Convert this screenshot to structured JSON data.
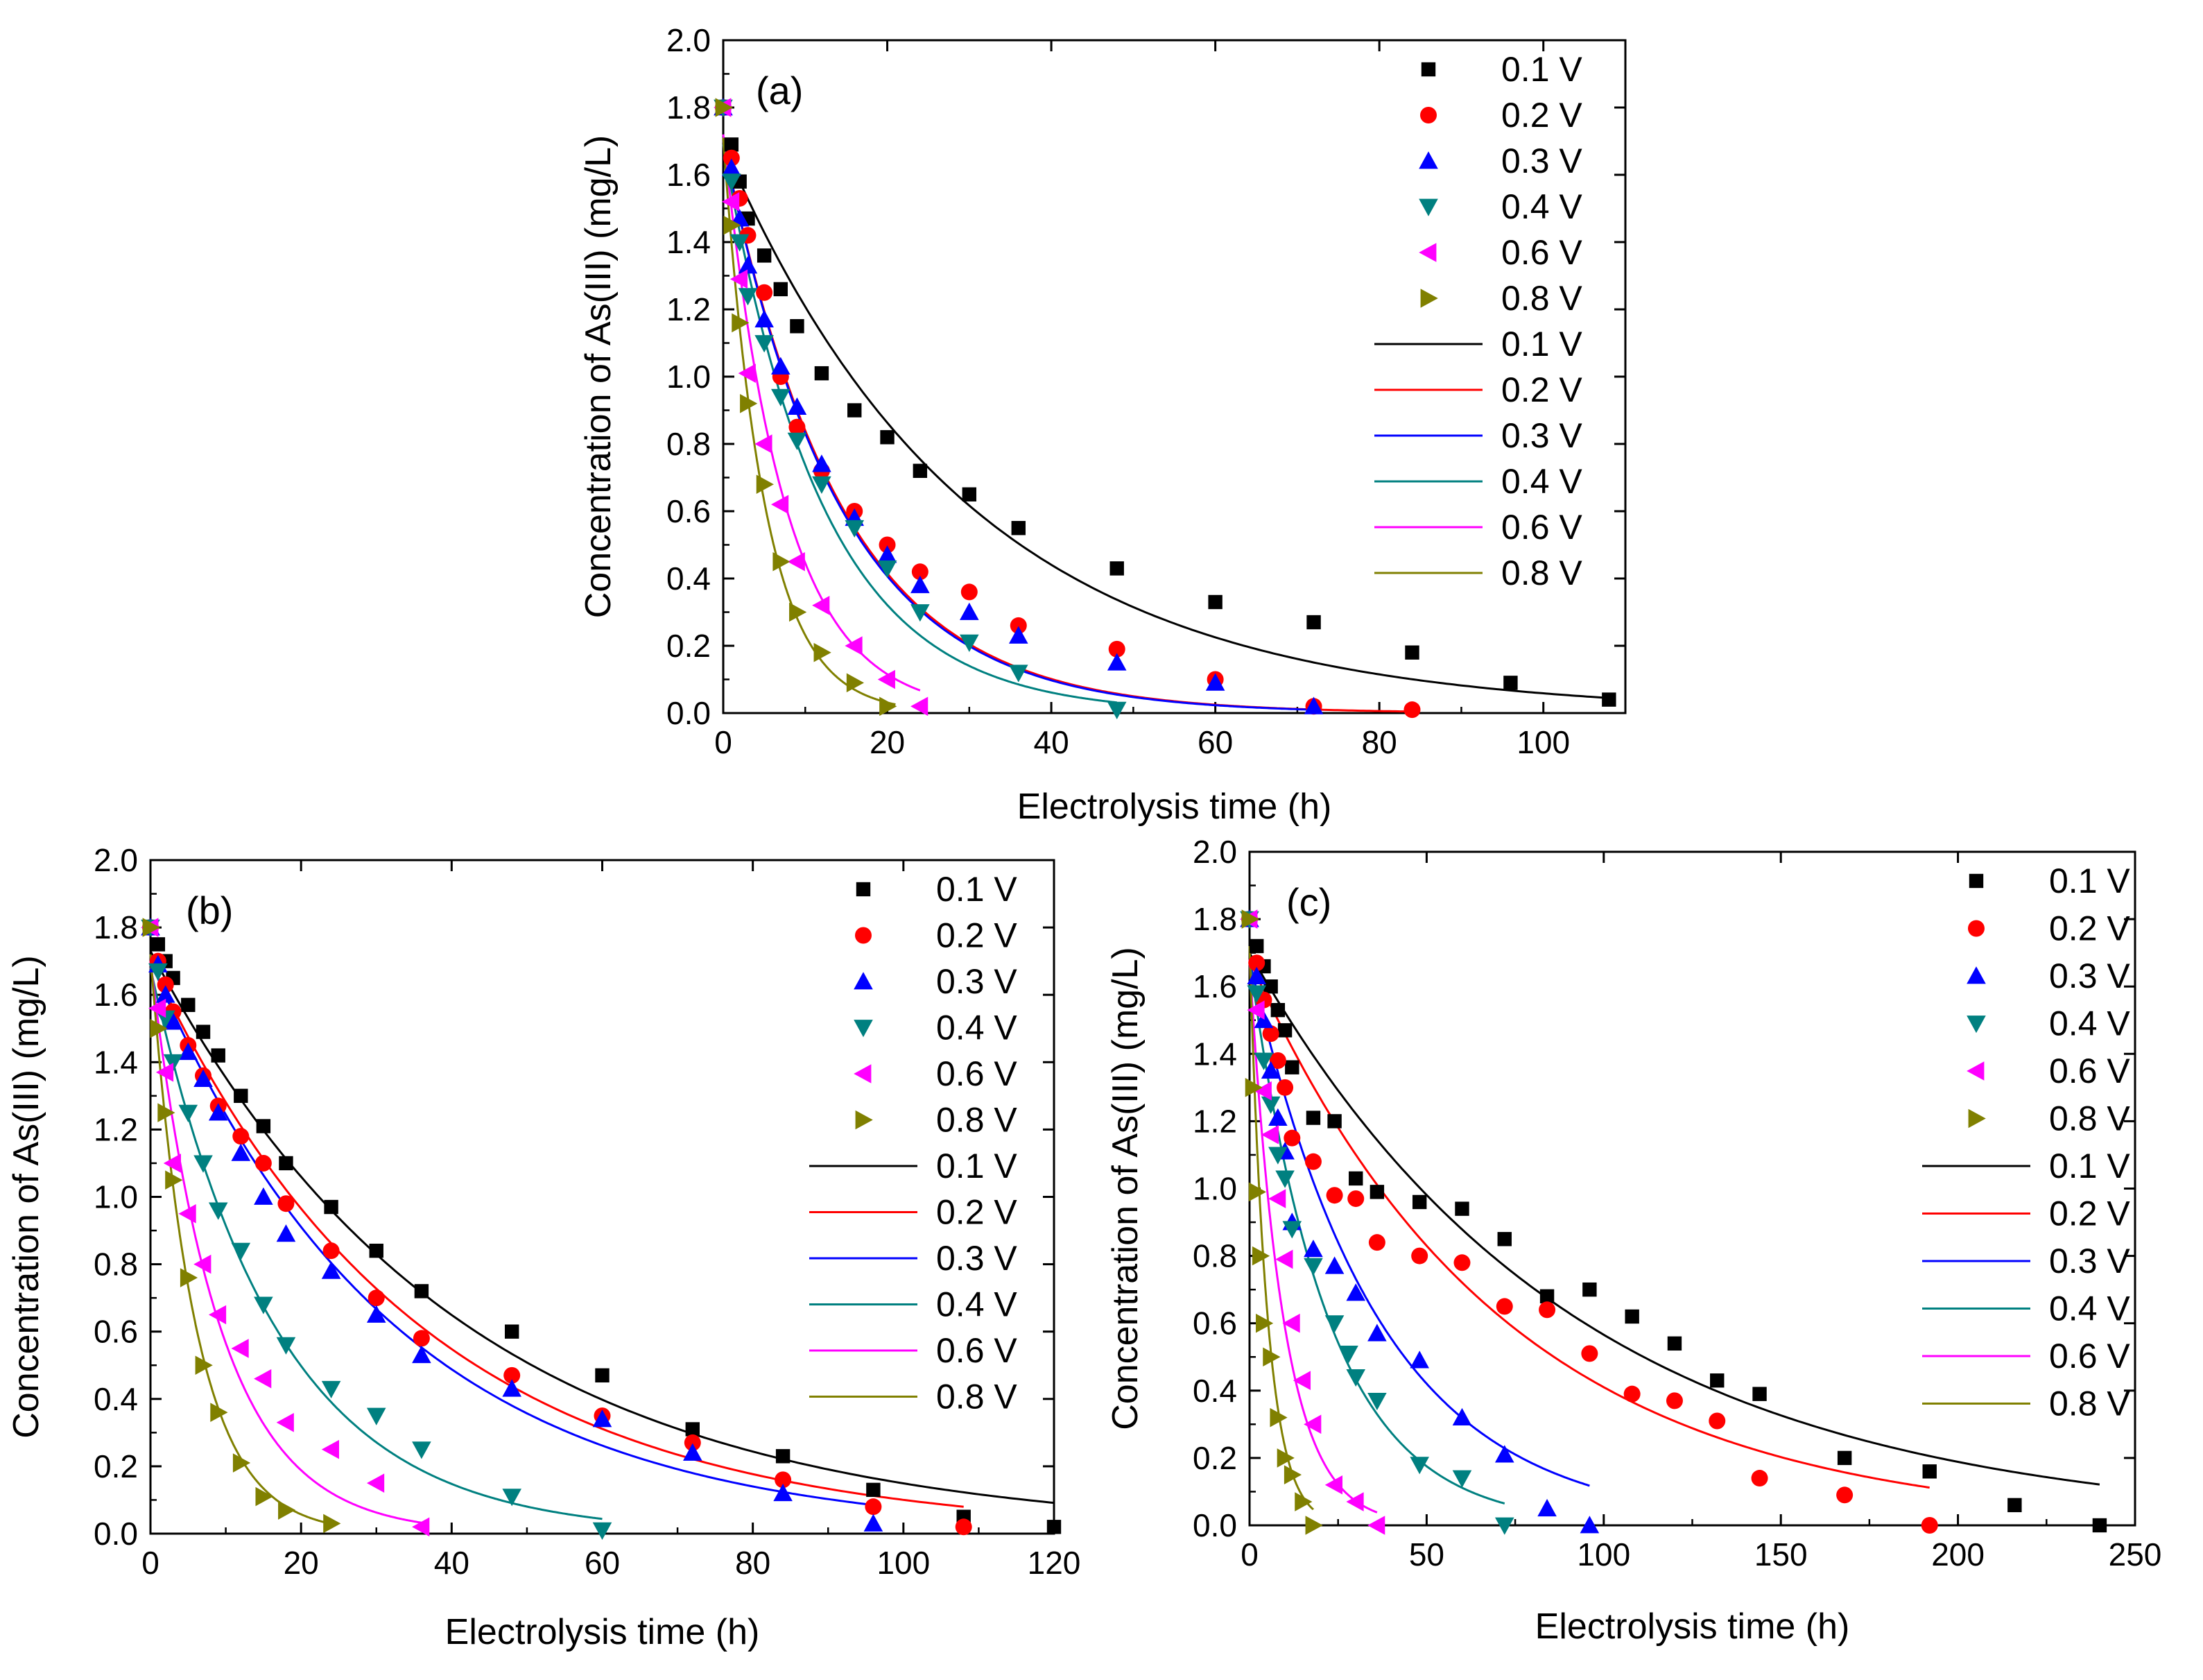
{
  "figure": {
    "colors": {
      "0.1 V": "#000000",
      "0.2 V": "#ff0000",
      "0.3 V": "#0000ff",
      "0.4 V": "#008080",
      "0.6 V": "#ff00ff",
      "0.8 V": "#808000"
    },
    "markers": {
      "0.1 V": "square",
      "0.2 V": "circle",
      "0.3 V": "triangle-up",
      "0.4 V": "triangle-down",
      "0.6 V": "triangle-left",
      "0.8 V": "triangle-right"
    }
  },
  "chart_data": [
    {
      "type": "scatter",
      "panel_label": "(a)",
      "xlabel": "Electrolysis time (h)",
      "ylabel": "Concentration of As(III) (mg/L)",
      "xlim": [
        0,
        110
      ],
      "ylim": [
        0,
        2.0
      ],
      "xticks": [
        0,
        20,
        40,
        60,
        80,
        100
      ],
      "xtick_labels": [
        "0",
        "20",
        "40",
        "60",
        "80",
        "100"
      ],
      "yticks": [
        0,
        0.2,
        0.4,
        0.6,
        0.8,
        1.0,
        1.2,
        1.4,
        1.6,
        1.8,
        2.0
      ],
      "ytick_labels": [
        "0.0",
        "0.2",
        "0.4",
        "0.6",
        "0.8",
        "1.0",
        "1.2",
        "1.4",
        "1.6",
        "1.8",
        "2.0"
      ],
      "legend_position": "top-right",
      "series": [
        {
          "name": "0.1 V",
          "x": [
            0,
            1,
            2,
            3,
            5,
            7,
            9,
            12,
            16,
            20,
            24,
            30,
            36,
            48,
            60,
            72,
            84,
            96,
            108
          ],
          "values": [
            1.8,
            1.69,
            1.58,
            1.47,
            1.36,
            1.26,
            1.15,
            1.01,
            0.9,
            0.82,
            0.72,
            0.65,
            0.55,
            0.43,
            0.33,
            0.27,
            0.18,
            0.09,
            0.04
          ],
          "fit": {
            "c0": 1.69,
            "k": 0.0336,
            "tmax": 108
          }
        },
        {
          "name": "0.2 V",
          "x": [
            0,
            1,
            2,
            3,
            5,
            7,
            9,
            12,
            16,
            20,
            24,
            30,
            36,
            48,
            60,
            72,
            84
          ],
          "values": [
            1.8,
            1.65,
            1.53,
            1.42,
            1.25,
            1.0,
            0.85,
            0.72,
            0.6,
            0.5,
            0.42,
            0.36,
            0.26,
            0.19,
            0.1,
            0.02,
            0.01
          ],
          "fit": {
            "c0": 1.7,
            "k": 0.0705,
            "tmax": 84
          }
        },
        {
          "name": "0.3 V",
          "x": [
            0,
            1,
            2,
            3,
            5,
            7,
            9,
            12,
            16,
            20,
            24,
            30,
            36,
            48,
            60,
            72
          ],
          "values": [
            1.8,
            1.62,
            1.47,
            1.33,
            1.17,
            1.03,
            0.91,
            0.74,
            0.58,
            0.47,
            0.38,
            0.3,
            0.23,
            0.15,
            0.09,
            0.02
          ],
          "fit": {
            "c0": 1.7,
            "k": 0.0715,
            "tmax": 72
          }
        },
        {
          "name": "0.4 V",
          "x": [
            0,
            1,
            2,
            3,
            5,
            7,
            9,
            12,
            16,
            20,
            24,
            30,
            36,
            48
          ],
          "values": [
            1.8,
            1.58,
            1.4,
            1.24,
            1.1,
            0.94,
            0.81,
            0.68,
            0.55,
            0.43,
            0.3,
            0.21,
            0.12,
            0.01
          ],
          "fit": {
            "c0": 1.69,
            "k": 0.083,
            "tmax": 48
          }
        },
        {
          "name": "0.6 V",
          "x": [
            0,
            1,
            2,
            3,
            5,
            7,
            9,
            12,
            16,
            20,
            24
          ],
          "values": [
            1.8,
            1.52,
            1.29,
            1.01,
            0.8,
            0.62,
            0.45,
            0.32,
            0.2,
            0.1,
            0.02
          ],
          "fit": {
            "c0": 1.72,
            "k": 0.135,
            "tmax": 24
          }
        },
        {
          "name": "0.8 V",
          "x": [
            0,
            1,
            2,
            3,
            5,
            7,
            9,
            12,
            16,
            20
          ],
          "values": [
            1.8,
            1.45,
            1.16,
            0.92,
            0.68,
            0.45,
            0.3,
            0.18,
            0.09,
            0.02
          ],
          "fit": {
            "c0": 1.71,
            "k": 0.2,
            "tmax": 21
          }
        }
      ]
    },
    {
      "type": "scatter",
      "panel_label": "(b)",
      "xlabel": "Electrolysis time  (h)",
      "ylabel": "Concentration of As(III) (mg/L)",
      "xlim": [
        0,
        120
      ],
      "ylim": [
        0,
        2.0
      ],
      "xticks": [
        0,
        20,
        40,
        60,
        80,
        100,
        120
      ],
      "xtick_labels": [
        "0",
        "20",
        "40",
        "60",
        "80",
        "100",
        "120"
      ],
      "yticks": [
        0,
        0.2,
        0.4,
        0.6,
        0.8,
        1.0,
        1.2,
        1.4,
        1.6,
        1.8,
        2.0
      ],
      "ytick_labels": [
        "0.0",
        "0.2",
        "0.4",
        "0.6",
        "0.8",
        "1.0",
        "1.2",
        "1.4",
        "1.6",
        "1.8",
        "2.0"
      ],
      "legend_position": "top-right",
      "series": [
        {
          "name": "0.1 V",
          "x": [
            0,
            1,
            2,
            3,
            5,
            7,
            9,
            12,
            15,
            18,
            24,
            30,
            36,
            48,
            60,
            72,
            84,
            96,
            108,
            120
          ],
          "values": [
            1.8,
            1.75,
            1.7,
            1.65,
            1.57,
            1.49,
            1.42,
            1.3,
            1.21,
            1.1,
            0.97,
            0.84,
            0.72,
            0.6,
            0.47,
            0.31,
            0.23,
            0.13,
            0.05,
            0.02
          ],
          "fit": {
            "c0": 1.73,
            "k": 0.0245,
            "tmax": 120
          }
        },
        {
          "name": "0.2 V",
          "x": [
            0,
            1,
            2,
            3,
            5,
            7,
            9,
            12,
            15,
            18,
            24,
            30,
            36,
            48,
            60,
            72,
            84,
            96,
            108
          ],
          "values": [
            1.8,
            1.7,
            1.63,
            1.55,
            1.45,
            1.36,
            1.27,
            1.18,
            1.1,
            0.98,
            0.84,
            0.7,
            0.58,
            0.47,
            0.35,
            0.27,
            0.16,
            0.08,
            0.02
          ],
          "fit": {
            "c0": 1.7,
            "k": 0.0283,
            "tmax": 108
          }
        },
        {
          "name": "0.3 V",
          "x": [
            0,
            1,
            2,
            3,
            5,
            7,
            9,
            12,
            15,
            18,
            24,
            30,
            36,
            48,
            60,
            72,
            84,
            96
          ],
          "values": [
            1.8,
            1.69,
            1.6,
            1.52,
            1.43,
            1.35,
            1.25,
            1.13,
            1.0,
            0.89,
            0.78,
            0.65,
            0.53,
            0.43,
            0.34,
            0.24,
            0.12,
            0.03
          ],
          "fit": {
            "c0": 1.7,
            "k": 0.0312,
            "tmax": 96
          }
        },
        {
          "name": "0.4 V",
          "x": [
            0,
            1,
            2,
            3,
            5,
            7,
            9,
            12,
            15,
            18,
            24,
            30,
            36,
            48,
            60
          ],
          "values": [
            1.8,
            1.67,
            1.53,
            1.4,
            1.25,
            1.1,
            0.96,
            0.84,
            0.68,
            0.56,
            0.43,
            0.35,
            0.25,
            0.11,
            0.01
          ],
          "fit": {
            "c0": 1.68,
            "k": 0.0608,
            "tmax": 60
          }
        },
        {
          "name": "0.6 V",
          "x": [
            0,
            1,
            2,
            3,
            5,
            7,
            9,
            12,
            15,
            18,
            24,
            30,
            36
          ],
          "values": [
            1.8,
            1.56,
            1.37,
            1.1,
            0.95,
            0.8,
            0.65,
            0.55,
            0.46,
            0.33,
            0.25,
            0.15,
            0.02
          ],
          "fit": {
            "c0": 1.7,
            "k": 0.11,
            "tmax": 36
          }
        },
        {
          "name": "0.8 V",
          "x": [
            0,
            1,
            2,
            3,
            5,
            7,
            9,
            12,
            15,
            18,
            24
          ],
          "values": [
            1.8,
            1.5,
            1.25,
            1.05,
            0.76,
            0.5,
            0.36,
            0.21,
            0.11,
            0.07,
            0.03
          ],
          "fit": {
            "c0": 1.72,
            "k": 0.17,
            "tmax": 24
          }
        }
      ]
    },
    {
      "type": "scatter",
      "panel_label": "(c)",
      "xlabel": "Electrolysis time (h)",
      "ylabel": "Concentration of As(III) (mg/L)",
      "xlim": [
        0,
        250
      ],
      "ylim": [
        0,
        2.0
      ],
      "xticks": [
        0,
        50,
        100,
        150,
        200,
        250
      ],
      "xtick_labels": [
        "0",
        "50",
        "100",
        "150",
        "200",
        "250"
      ],
      "yticks": [
        0,
        0.2,
        0.4,
        0.6,
        0.8,
        1.0,
        1.2,
        1.4,
        1.6,
        1.8,
        2.0
      ],
      "ytick_labels": [
        "0.0",
        "0.2",
        "0.4",
        "0.6",
        "0.8",
        "1.0",
        "1.2",
        "1.4",
        "1.6",
        "1.8",
        "2.0"
      ],
      "legend_position": "top-right",
      "series": [
        {
          "name": "0.1 V",
          "x": [
            0,
            2,
            4,
            6,
            8,
            10,
            12,
            18,
            24,
            30,
            36,
            48,
            60,
            72,
            84,
            96,
            108,
            120,
            132,
            144,
            168,
            192,
            216,
            240
          ],
          "values": [
            1.8,
            1.72,
            1.66,
            1.6,
            1.53,
            1.47,
            1.36,
            1.21,
            1.2,
            1.03,
            0.99,
            0.96,
            0.94,
            0.85,
            0.68,
            0.7,
            0.62,
            0.54,
            0.43,
            0.39,
            0.2,
            0.16,
            0.06,
            0.0
          ],
          "fit": {
            "c0": 1.7,
            "k": 0.011,
            "tmax": 240
          }
        },
        {
          "name": "0.2 V",
          "x": [
            0,
            2,
            4,
            6,
            8,
            10,
            12,
            18,
            24,
            30,
            36,
            48,
            60,
            72,
            84,
            96,
            108,
            120,
            132,
            144,
            168,
            192
          ],
          "values": [
            1.8,
            1.67,
            1.56,
            1.46,
            1.38,
            1.3,
            1.15,
            1.08,
            0.98,
            0.97,
            0.84,
            0.8,
            0.78,
            0.65,
            0.64,
            0.51,
            0.39,
            0.37,
            0.31,
            0.14,
            0.09,
            0.0
          ],
          "fit": {
            "c0": 1.68,
            "k": 0.0141,
            "tmax": 192
          }
        },
        {
          "name": "0.3 V",
          "x": [
            0,
            2,
            4,
            6,
            8,
            10,
            12,
            18,
            24,
            30,
            36,
            48,
            60,
            72,
            84,
            96
          ],
          "values": [
            1.8,
            1.63,
            1.5,
            1.35,
            1.21,
            1.11,
            0.9,
            0.82,
            0.77,
            0.69,
            0.57,
            0.49,
            0.32,
            0.21,
            0.05,
            0.0
          ],
          "fit": {
            "c0": 1.68,
            "k": 0.0277,
            "tmax": 96
          }
        },
        {
          "name": "0.4 V",
          "x": [
            0,
            2,
            4,
            6,
            8,
            10,
            12,
            18,
            24,
            28,
            30,
            36,
            48,
            60,
            72
          ],
          "values": [
            1.8,
            1.58,
            1.38,
            1.25,
            1.1,
            1.03,
            0.88,
            0.77,
            0.6,
            0.51,
            0.44,
            0.37,
            0.18,
            0.14,
            0.0
          ],
          "fit": {
            "c0": 1.68,
            "k": 0.0452,
            "tmax": 72
          }
        },
        {
          "name": "0.6 V",
          "x": [
            0,
            2,
            4,
            6,
            8,
            10,
            12,
            15,
            18,
            24,
            30,
            36
          ],
          "values": [
            1.8,
            1.53,
            1.29,
            1.16,
            0.97,
            0.79,
            0.6,
            0.43,
            0.3,
            0.12,
            0.07,
            0.0
          ],
          "fit": {
            "c0": 1.68,
            "k": 0.105,
            "tmax": 36
          }
        },
        {
          "name": "0.8 V",
          "x": [
            0,
            1,
            2,
            3,
            4,
            6,
            8,
            10,
            12,
            15,
            18
          ],
          "values": [
            1.8,
            1.3,
            0.99,
            0.8,
            0.6,
            0.5,
            0.32,
            0.2,
            0.15,
            0.07,
            0.0
          ],
          "fit": {
            "c0": 1.72,
            "k": 0.2,
            "tmax": 18
          }
        }
      ]
    }
  ]
}
